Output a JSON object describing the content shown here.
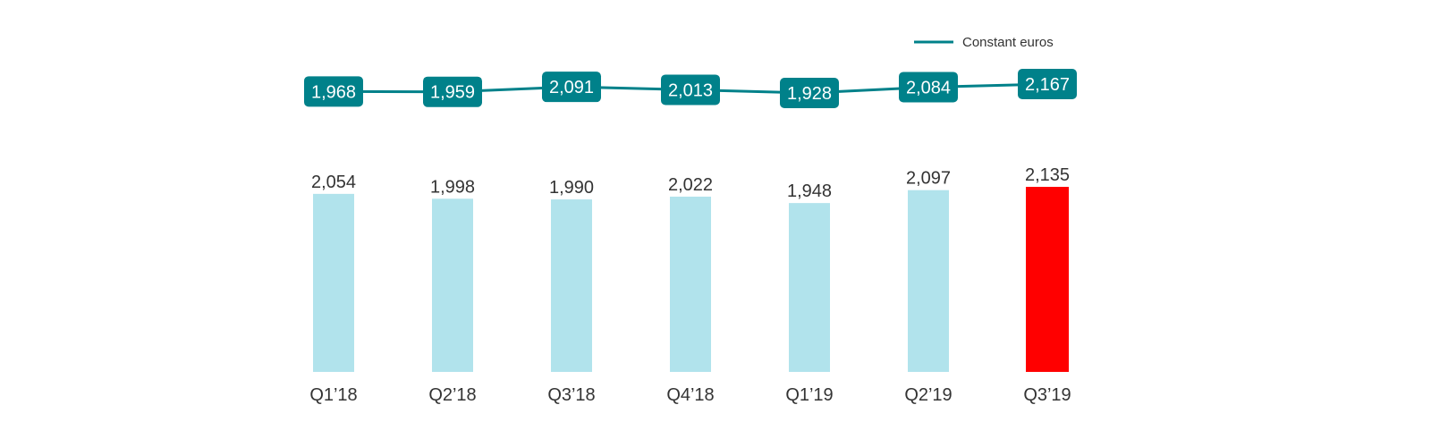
{
  "chart_data": {
    "type": "bar",
    "categories": [
      "Q1'18",
      "Q2'18",
      "Q3'18",
      "Q4'18",
      "Q1'19",
      "Q2'19",
      "Q3'19"
    ],
    "series": [
      {
        "kind": "bar",
        "values": [
          2054,
          1998,
          1990,
          2022,
          1948,
          2097,
          2135
        ],
        "labels": [
          "2,054",
          "1,998",
          "1,990",
          "2,022",
          "1,948",
          "2,097",
          "2,135"
        ],
        "color": "#b1e3ec",
        "highlight_color": "#ff0000",
        "highlight_index": 6
      },
      {
        "name": "Constant euros",
        "kind": "line",
        "values": [
          1968,
          1959,
          2091,
          2013,
          1928,
          2084,
          2167
        ],
        "labels": [
          "1,968",
          "1,959",
          "2,091",
          "2,013",
          "1,928",
          "2,084",
          "2,167"
        ],
        "color": "#00818a"
      }
    ],
    "legend": {
      "position": "top-right",
      "entries": [
        "Constant euros"
      ]
    },
    "grid": false
  }
}
